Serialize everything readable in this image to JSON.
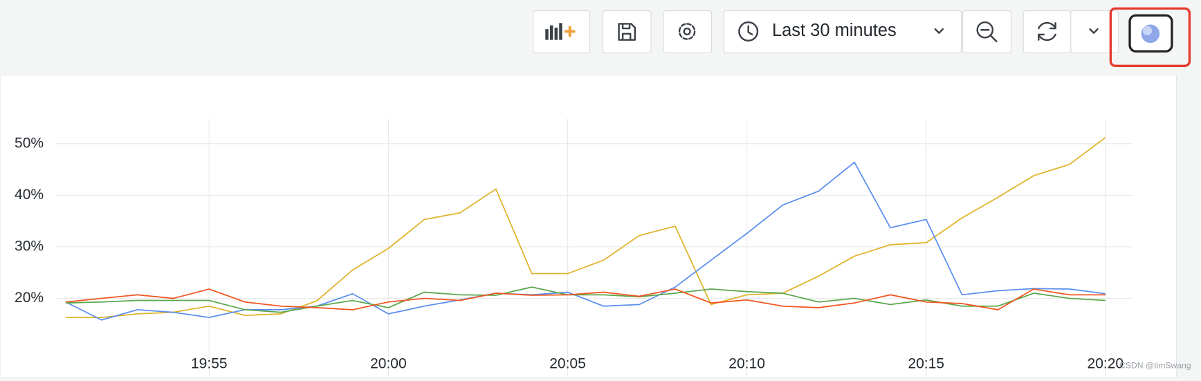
{
  "toolbar": {
    "time_range": "Last 30 minutes"
  },
  "watermark": "CSDN @timSwang",
  "chart_data": {
    "type": "line",
    "x": [
      "19:51",
      "19:52",
      "19:53",
      "19:54",
      "19:55",
      "19:56",
      "19:57",
      "19:58",
      "19:59",
      "20:00",
      "20:01",
      "20:02",
      "20:03",
      "20:04",
      "20:05",
      "20:06",
      "20:07",
      "20:08",
      "20:09",
      "20:10",
      "20:11",
      "20:12",
      "20:13",
      "20:14",
      "20:15",
      "20:16",
      "20:17",
      "20:18",
      "20:19",
      "20:20"
    ],
    "series": [
      {
        "color": "#e0b32a",
        "values": [
          16.3,
          16.3,
          17,
          17.3,
          18.5,
          16.7,
          17,
          19.5,
          25.5,
          29.7,
          35.3,
          36.6,
          41.2,
          24.8,
          24.8,
          27.4,
          32.2,
          34,
          18.8,
          20.7,
          21,
          24.3,
          28.2,
          30.4,
          30.8,
          35.6,
          39.6,
          43.8,
          46,
          51.2
        ]
      },
      {
        "color": "#5b8ff0",
        "values": [
          19.3,
          15.8,
          17.8,
          17.3,
          16.3,
          17.8,
          17.8,
          18.5,
          20.9,
          17,
          18.5,
          19.7,
          21,
          20.7,
          21.2,
          18.5,
          18.8,
          22.2,
          27.4,
          32.6,
          38.1,
          40.8,
          46.4,
          33.7,
          35.3,
          20.7,
          21.5,
          21.9,
          21.8,
          20.9
        ]
      },
      {
        "color": "#5aa64b",
        "values": [
          19.1,
          19.3,
          19.6,
          19.6,
          19.6,
          17.8,
          17.3,
          18.5,
          19.6,
          18.2,
          21.2,
          20.7,
          20.6,
          22.2,
          20.7,
          20.7,
          20.3,
          21,
          21.8,
          21.3,
          21,
          19.3,
          20,
          18.8,
          19.7,
          18.5,
          18.5,
          21,
          20,
          19.6
        ]
      },
      {
        "color": "#f0561f",
        "values": [
          19.3,
          20,
          20.7,
          20,
          21.8,
          19.3,
          18.5,
          18.2,
          17.8,
          19.3,
          20,
          19.6,
          21,
          20.6,
          20.7,
          21.2,
          20.4,
          21.8,
          19.1,
          19.7,
          18.5,
          18.2,
          19.1,
          20.7,
          19.3,
          19,
          17.8,
          21.8,
          20.7,
          20.7
        ]
      }
    ],
    "xlim": [
      "19:50",
      "20:21"
    ],
    "xticks": [
      "19:55",
      "20:00",
      "20:05",
      "20:10",
      "20:15",
      "20:20"
    ],
    "ylim": [
      10,
      55
    ],
    "yticks": [
      {
        "value": 20,
        "label": "20%"
      },
      {
        "value": 30,
        "label": "30%"
      },
      {
        "value": 40,
        "label": "40%"
      },
      {
        "value": 50,
        "label": "50%"
      }
    ],
    "grid": true
  }
}
